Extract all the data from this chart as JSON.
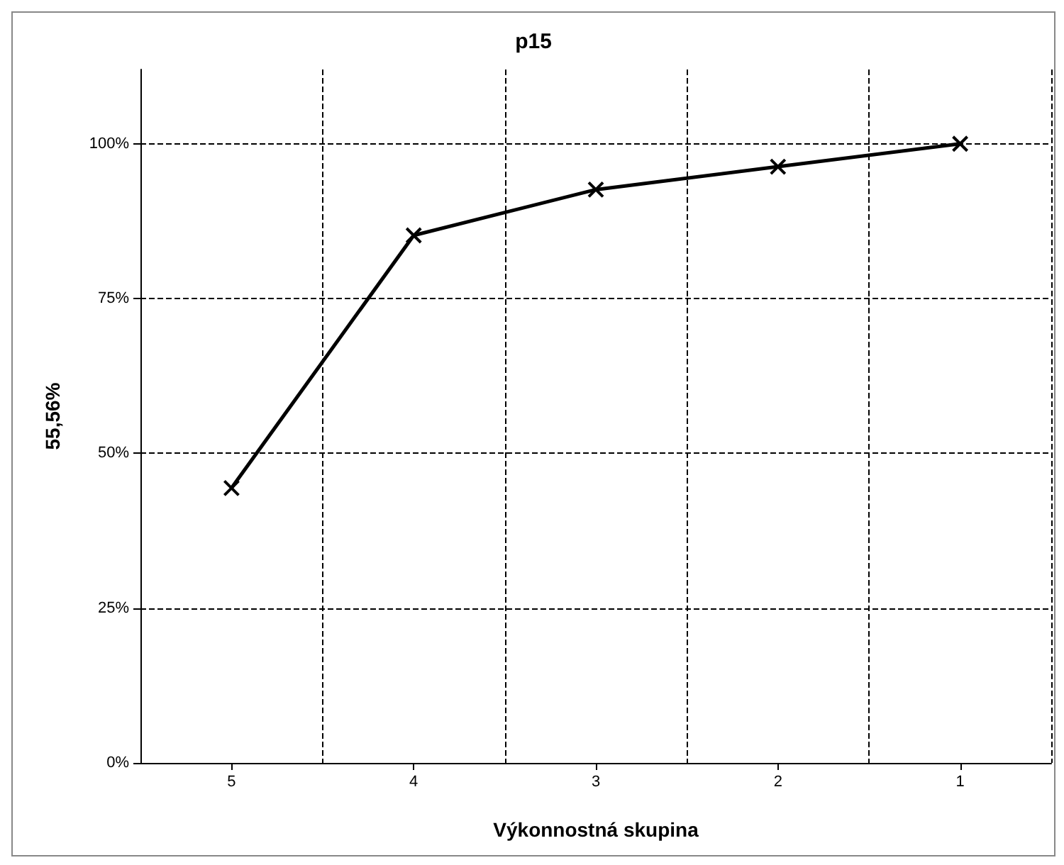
{
  "chart_data": {
    "type": "line",
    "title": "p15",
    "xlabel": "Výkonnostná skupina",
    "ylabel": "55,56%",
    "categories": [
      "5",
      "4",
      "3",
      "2",
      "1"
    ],
    "series": [
      {
        "color": "#000000",
        "values": [
          44.4,
          85.2,
          92.6,
          96.3,
          100
        ]
      }
    ],
    "ylim": [
      0,
      112
    ],
    "yticks": [
      {
        "value": 0,
        "label": "0%"
      },
      {
        "value": 25,
        "label": "25%"
      },
      {
        "value": 50,
        "label": "50%"
      },
      {
        "value": 75,
        "label": "75%"
      },
      {
        "value": 100,
        "label": "100%"
      }
    ],
    "grid": true,
    "marker": "cross",
    "line_style": "solid"
  }
}
